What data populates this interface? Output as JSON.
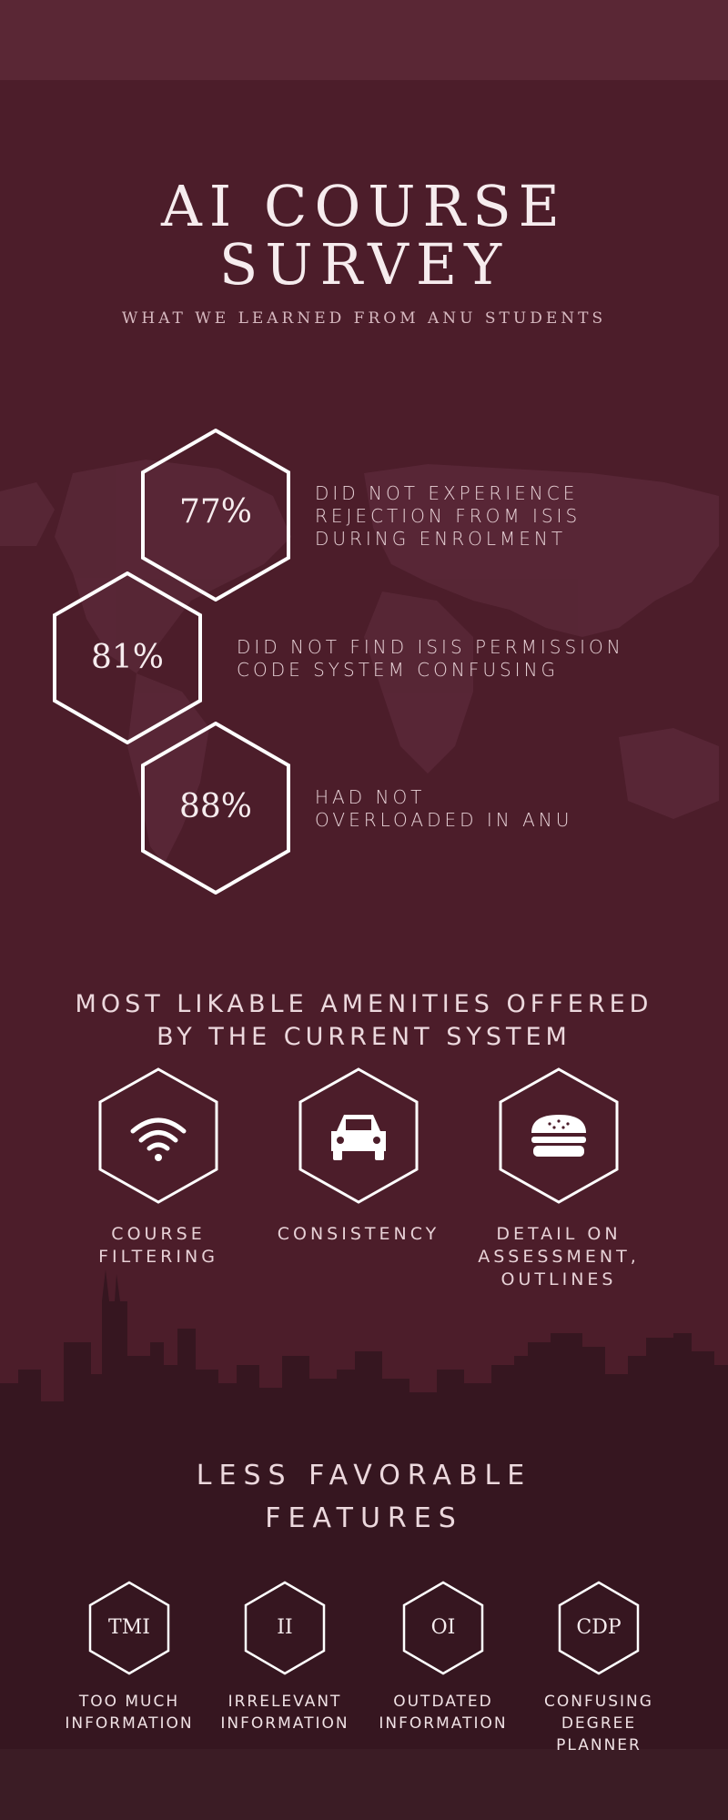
{
  "header": {
    "title_line1": "AI COURSE",
    "title_line2": "SURVEY",
    "subtitle": "WHAT WE LEARNED FROM ANU STUDENTS"
  },
  "stats": [
    {
      "value": "77%",
      "line1": "DID NOT EXPERIENCE",
      "line2": "REJECTION FROM ISIS",
      "line3": "DURING ENROLMENT"
    },
    {
      "value": "81%",
      "line1": "DID NOT FIND ISIS PERMISSION",
      "line2": "CODE SYSTEM CONFUSING"
    },
    {
      "value": "88%",
      "line1": "HAD NOT",
      "line2": "OVERLOADED IN ANU"
    }
  ],
  "amenities": {
    "title_line1": "MOST LIKABLE AMENITIES OFFERED",
    "title_line2": "BY THE CURRENT SYSTEM",
    "items": [
      {
        "icon": "wifi-icon",
        "line1": "COURSE",
        "line2": "FILTERING"
      },
      {
        "icon": "car-icon",
        "line1": "CONSISTENCY"
      },
      {
        "icon": "burger-icon",
        "line1": "DETAIL ON",
        "line2": "ASSESSMENT,",
        "line3": "OUTLINES"
      }
    ]
  },
  "features": {
    "title_line1": "LESS FAVORABLE",
    "title_line2": "FEATURES",
    "items": [
      {
        "abbr": "TMI",
        "line1": "TOO MUCH",
        "line2": "INFORMATION"
      },
      {
        "abbr": "II",
        "line1": "IRRELEVANT",
        "line2": "INFORMATION"
      },
      {
        "abbr": "OI",
        "line1": "OUTDATED",
        "line2": "INFORMATION"
      },
      {
        "abbr": "CDP",
        "line1": "CONFUSING",
        "line2": "DEGREE",
        "line3": "PLANNER"
      }
    ]
  },
  "colors": {
    "background": "#4c1d2a",
    "top_bar": "#5a2735",
    "dark_band": "#361620",
    "hex_stroke": "#ffffff",
    "text": "#f6ecee"
  }
}
